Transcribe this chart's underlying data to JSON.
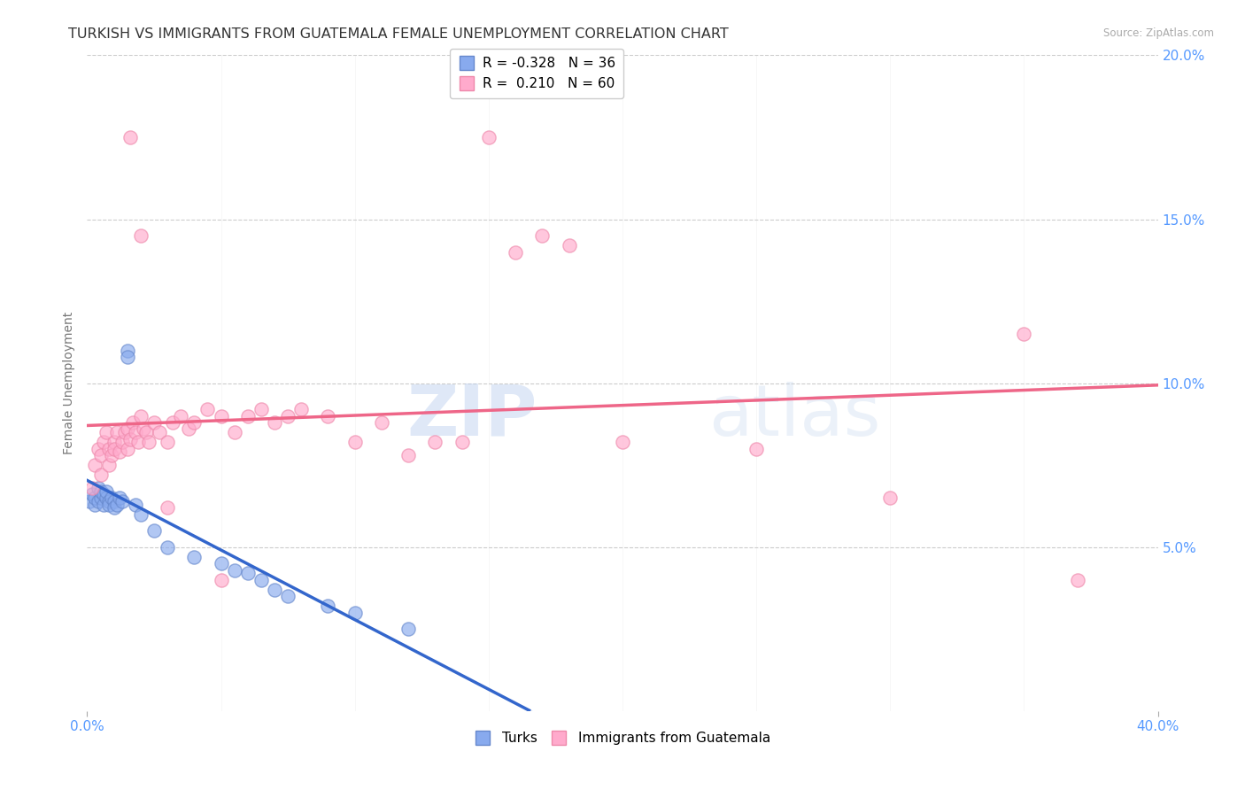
{
  "title": "TURKISH VS IMMIGRANTS FROM GUATEMALA FEMALE UNEMPLOYMENT CORRELATION CHART",
  "source": "Source: ZipAtlas.com",
  "ylabel": "Female Unemployment",
  "xlim": [
    0.0,
    0.4
  ],
  "ylim": [
    0.0,
    0.2
  ],
  "xtick_positions": [
    0.0,
    0.4
  ],
  "xticklabels": [
    "0.0%",
    "40.0%"
  ],
  "yticks": [
    0.0,
    0.05,
    0.1,
    0.15,
    0.2
  ],
  "yticklabels": [
    "",
    "5.0%",
    "10.0%",
    "15.0%",
    "20.0%"
  ],
  "grid_yticks": [
    0.05,
    0.1,
    0.15,
    0.2
  ],
  "turks_color": "#88aaee",
  "turks_edge_color": "#6688cc",
  "guatemala_color": "#ffaacc",
  "guatemala_edge_color": "#ee88aa",
  "turks_R": -0.328,
  "turks_N": 36,
  "guatemala_R": 0.21,
  "guatemala_N": 60,
  "legend_label_turks": "Turks",
  "legend_label_guatemala": "Immigrants from Guatemala",
  "watermark_zip": "ZIP",
  "watermark_atlas": "atlas",
  "turks_x": [
    0.001,
    0.002,
    0.003,
    0.003,
    0.004,
    0.004,
    0.005,
    0.005,
    0.006,
    0.006,
    0.007,
    0.007,
    0.008,
    0.008,
    0.009,
    0.01,
    0.01,
    0.011,
    0.012,
    0.013,
    0.015,
    0.015,
    0.018,
    0.02,
    0.025,
    0.03,
    0.04,
    0.05,
    0.055,
    0.06,
    0.065,
    0.07,
    0.075,
    0.09,
    0.1,
    0.12
  ],
  "turks_y": [
    0.064,
    0.066,
    0.063,
    0.065,
    0.068,
    0.064,
    0.065,
    0.067,
    0.063,
    0.066,
    0.065,
    0.067,
    0.064,
    0.063,
    0.065,
    0.064,
    0.062,
    0.063,
    0.065,
    0.064,
    0.11,
    0.108,
    0.063,
    0.06,
    0.055,
    0.05,
    0.047,
    0.045,
    0.043,
    0.042,
    0.04,
    0.037,
    0.035,
    0.032,
    0.03,
    0.025
  ],
  "guatemala_x": [
    0.002,
    0.003,
    0.004,
    0.005,
    0.005,
    0.006,
    0.007,
    0.008,
    0.008,
    0.009,
    0.01,
    0.01,
    0.011,
    0.012,
    0.013,
    0.014,
    0.015,
    0.015,
    0.016,
    0.017,
    0.018,
    0.019,
    0.02,
    0.021,
    0.022,
    0.023,
    0.025,
    0.027,
    0.03,
    0.032,
    0.035,
    0.038,
    0.04,
    0.045,
    0.05,
    0.055,
    0.06,
    0.065,
    0.07,
    0.075,
    0.08,
    0.09,
    0.1,
    0.11,
    0.12,
    0.13,
    0.14,
    0.15,
    0.16,
    0.18,
    0.016,
    0.02,
    0.03,
    0.05,
    0.17,
    0.35,
    0.37,
    0.2,
    0.25,
    0.3
  ],
  "guatemala_y": [
    0.068,
    0.075,
    0.08,
    0.072,
    0.078,
    0.082,
    0.085,
    0.08,
    0.075,
    0.078,
    0.082,
    0.08,
    0.085,
    0.079,
    0.082,
    0.085,
    0.08,
    0.086,
    0.083,
    0.088,
    0.085,
    0.082,
    0.09,
    0.086,
    0.085,
    0.082,
    0.088,
    0.085,
    0.082,
    0.088,
    0.09,
    0.086,
    0.088,
    0.092,
    0.09,
    0.085,
    0.09,
    0.092,
    0.088,
    0.09,
    0.092,
    0.09,
    0.082,
    0.088,
    0.078,
    0.082,
    0.082,
    0.175,
    0.14,
    0.142,
    0.175,
    0.145,
    0.062,
    0.04,
    0.145,
    0.115,
    0.04,
    0.082,
    0.08,
    0.065
  ],
  "background_color": "#ffffff",
  "grid_color": "#cccccc",
  "axis_color": "#5599ff",
  "title_color": "#333333",
  "title_fontsize": 11.5,
  "label_fontsize": 10,
  "tick_fontsize": 11
}
